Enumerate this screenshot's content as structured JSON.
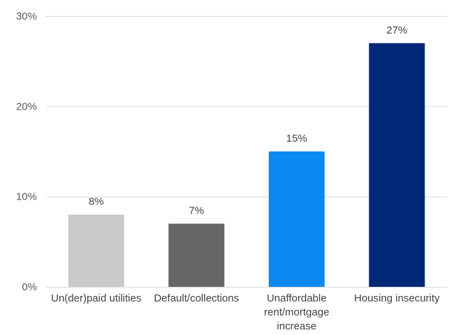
{
  "chart_data": {
    "type": "bar",
    "title": "",
    "xlabel": "",
    "ylabel": "",
    "categories": [
      [
        "Un(der)paid utilities"
      ],
      [
        "Default/collections"
      ],
      [
        "Unaffordable",
        "rent/mortgage",
        "increase"
      ],
      [
        "Housing insecurity"
      ]
    ],
    "values": [
      8,
      7,
      15,
      27
    ],
    "value_labels": [
      "8%",
      "7%",
      "15%",
      "27%"
    ],
    "colors": [
      "#c9c9c9",
      "#666666",
      "#0a8af0",
      "#002877"
    ],
    "ylim": [
      0,
      30
    ],
    "yticks": [
      0,
      10,
      20,
      30
    ],
    "ytick_labels": [
      "0%",
      "10%",
      "20%",
      "30%"
    ],
    "grid": true,
    "legend": "none"
  }
}
